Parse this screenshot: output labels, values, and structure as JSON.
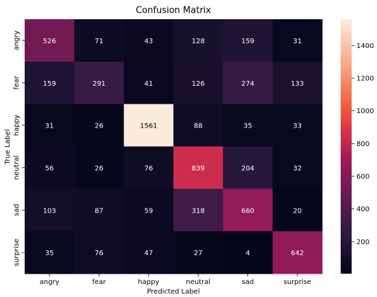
{
  "chart_data": {
    "type": "heatmap",
    "title": "Confusion Matrix",
    "xlabel": "Predicted Label",
    "ylabel": "True Label",
    "x_categories": [
      "angry",
      "fear",
      "happy",
      "neutral",
      "sad",
      "surprise"
    ],
    "y_categories": [
      "angry",
      "fear",
      "happy",
      "neutral",
      "sad",
      "surprise"
    ],
    "values": [
      [
        526,
        71,
        43,
        128,
        159,
        31
      ],
      [
        159,
        291,
        41,
        126,
        274,
        133
      ],
      [
        31,
        26,
        1561,
        88,
        35,
        33
      ],
      [
        56,
        26,
        76,
        839,
        204,
        32
      ],
      [
        103,
        87,
        59,
        318,
        660,
        20
      ],
      [
        35,
        76,
        47,
        27,
        4,
        642
      ]
    ],
    "colorbar": {
      "colormap": "rocket",
      "vmin": 4,
      "vmax": 1561,
      "ticks": [
        200,
        400,
        600,
        800,
        1000,
        1200,
        1400
      ]
    }
  }
}
